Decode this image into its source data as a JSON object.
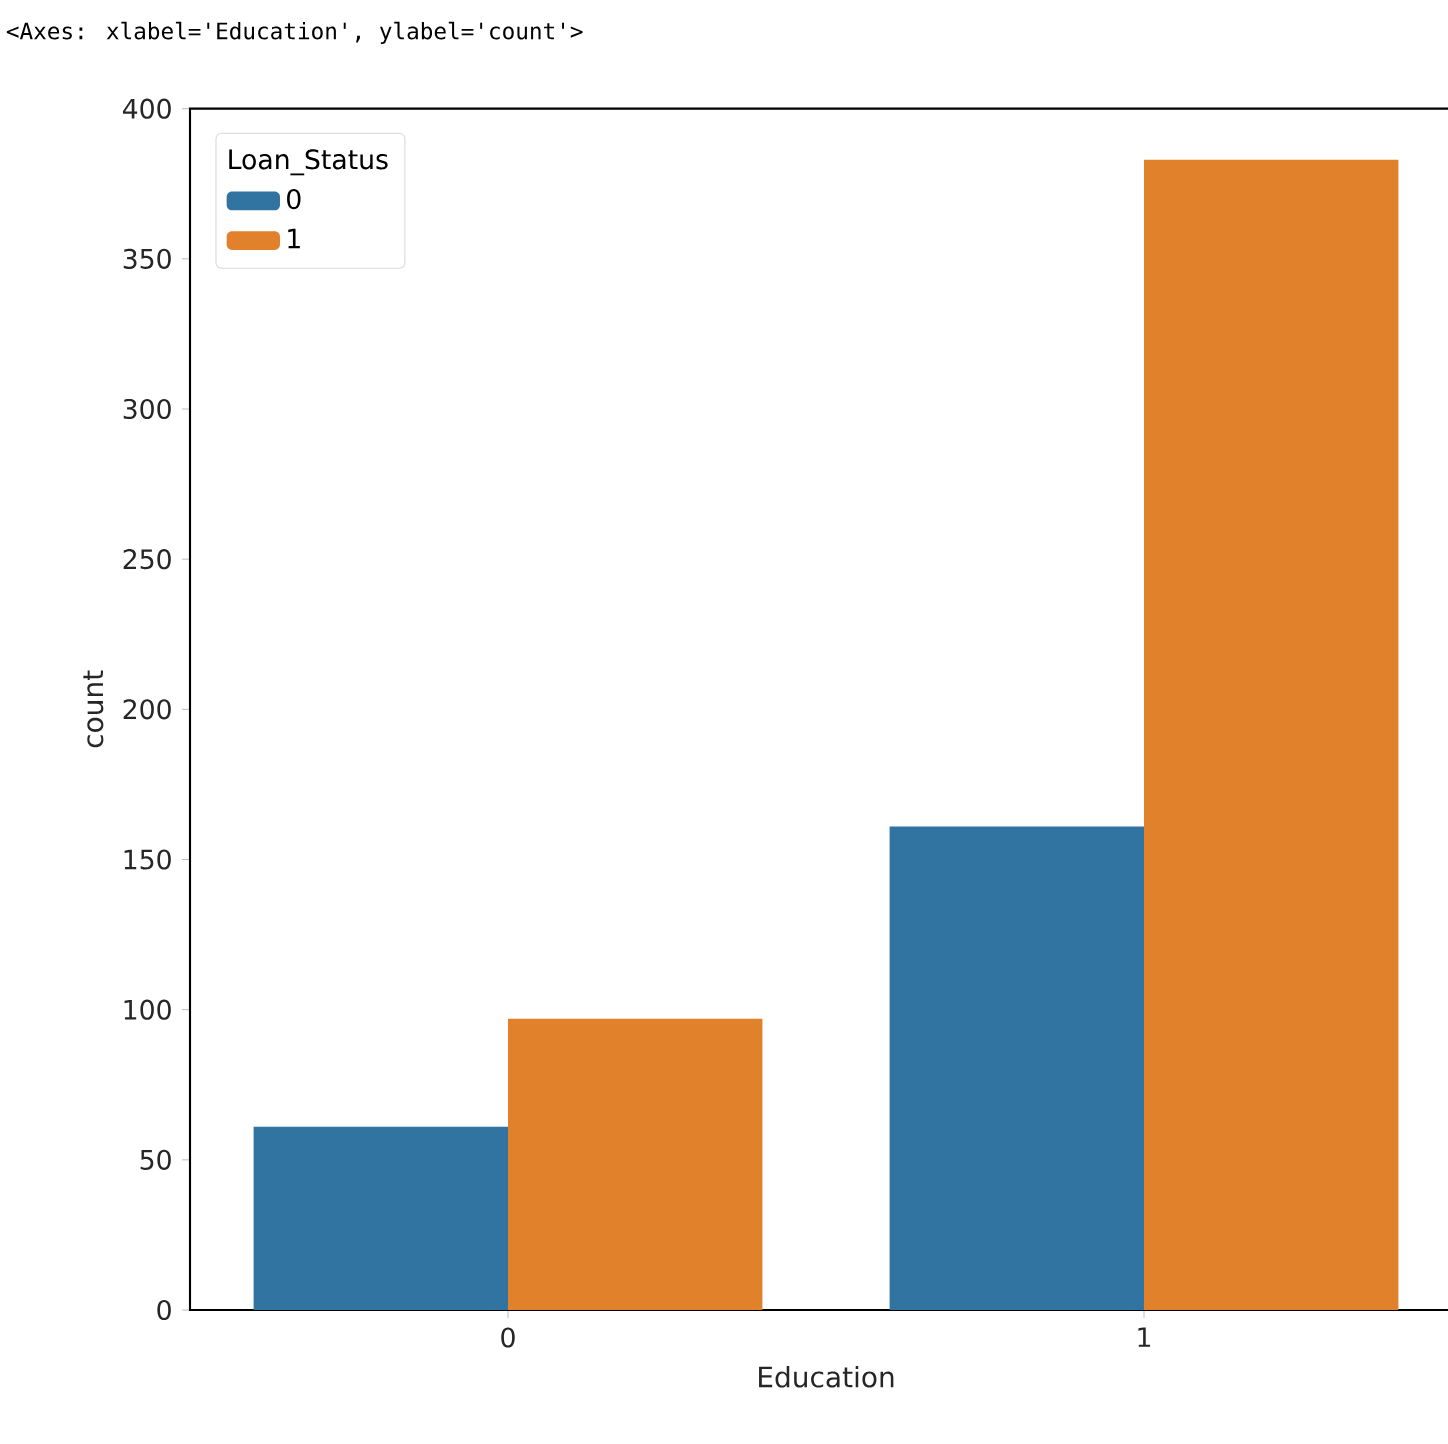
{
  "chart_data": {
    "type": "bar",
    "xlabel": "Education",
    "ylabel": "count",
    "legend_title": "Loan_Status",
    "categories": [
      "0",
      "1"
    ],
    "series": [
      {
        "name": "0",
        "color": "#3274a1",
        "values": [
          61,
          161
        ]
      },
      {
        "name": "1",
        "color": "#e1812c",
        "values": [
          97,
          383
        ]
      }
    ],
    "ylim": [
      0,
      400
    ],
    "yticks": [
      0,
      50,
      100,
      150,
      200,
      250,
      300,
      350,
      400
    ],
    "legend": "top left",
    "grid": false,
    "annotations": [
      "<Axes: xlabel='Education', ylabel='count'>"
    ]
  }
}
